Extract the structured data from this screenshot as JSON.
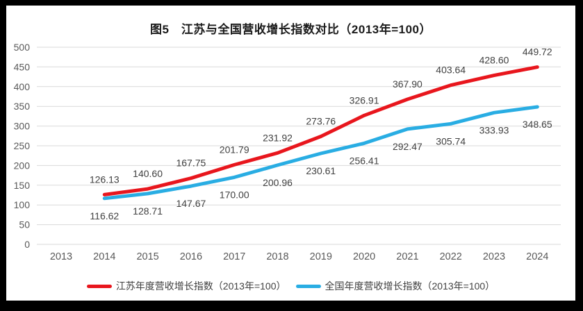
{
  "frame": {
    "background_color": "#000000",
    "canvas_color": "#ffffff"
  },
  "chart_data": {
    "type": "line",
    "title": "图5　江苏与全国营收增长指数对比（2013年=100）",
    "categories": [
      "2013",
      "2014",
      "2015",
      "2016",
      "2017",
      "2018",
      "2019",
      "2020",
      "2021",
      "2022",
      "2023",
      "2024"
    ],
    "series": [
      {
        "name": "江苏年度营收增长指数（2013年=100）",
        "color": "#e8161d",
        "label_position": "above",
        "values": [
          null,
          126.13,
          140.6,
          167.75,
          201.79,
          231.92,
          273.76,
          326.91,
          367.9,
          403.64,
          428.6,
          449.72
        ]
      },
      {
        "name": "全国年度营收增长指数（2013年=100）",
        "color": "#29ade3",
        "label_position": "below",
        "values": [
          null,
          116.62,
          128.71,
          147.67,
          170.0,
          200.96,
          230.61,
          256.41,
          292.47,
          305.74,
          333.93,
          348.65
        ]
      }
    ],
    "xlabel": "",
    "ylabel": "",
    "ylim": [
      0,
      500
    ],
    "ytick_step": 50,
    "grid": true,
    "legend_position": "bottom",
    "grid_color": "#d9d9d9",
    "tick_label_color": "#595959",
    "data_label_color": "#404040"
  }
}
